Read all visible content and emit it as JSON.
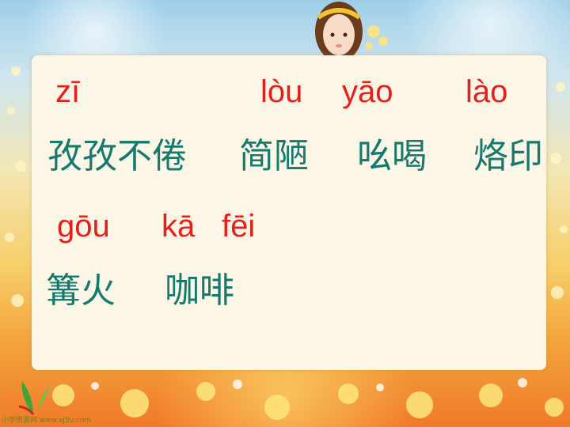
{
  "colors": {
    "pinyin": "#e3201b",
    "hanzi": "#137a6d",
    "panel": "#fbf6e6"
  },
  "rows": [
    {
      "pinyin": [
        "zī",
        "lòu",
        "yāo",
        "lào"
      ]
    },
    {
      "hanzi": [
        "孜孜不倦",
        "简陋",
        "吆喝",
        "烙印"
      ]
    },
    {
      "pinyin": [
        "gōu",
        "kā",
        "fēi"
      ]
    },
    {
      "hanzi": [
        "篝火",
        "咖啡"
      ]
    }
  ],
  "footer": {
    "logo_text": "小学资源网 www.xj5u.com"
  }
}
